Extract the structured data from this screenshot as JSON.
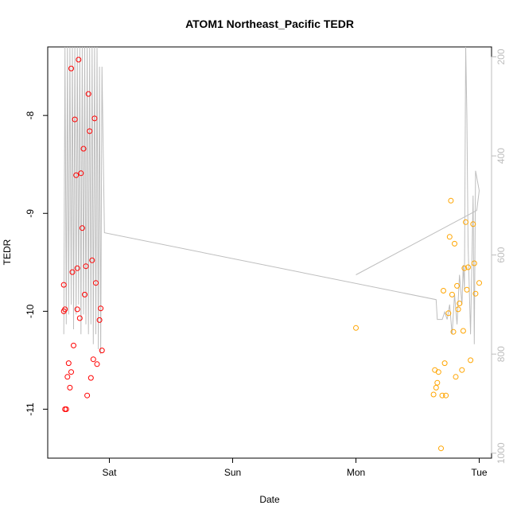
{
  "chart_data": {
    "type": "scatter",
    "title": "ATOM1 Northeast_Pacific TEDR",
    "xlabel": "Date",
    "ylabel": "TEDR",
    "x_ticks": [
      "Sat",
      "Sun",
      "Mon",
      "Tue"
    ],
    "xlim_days": [
      -0.5,
      3.1
    ],
    "ylim": [
      -11.5,
      -7.3
    ],
    "y_ticks": [
      -8,
      -9,
      -10,
      -11
    ],
    "y2_ticks": [
      200,
      400,
      600,
      800,
      1000
    ],
    "y2lim": [
      1010,
      180
    ],
    "grid": false,
    "colors": {
      "series1": "#ff0000",
      "series2": "#ffa500",
      "line": "#bebebe",
      "right_axis": "#bdbdbd"
    },
    "series": [
      {
        "color": "#ff0000",
        "points": [
          {
            "x": -0.37,
            "y": -9.73
          },
          {
            "x": -0.37,
            "y": -10.0
          },
          {
            "x": -0.36,
            "y": -9.98
          },
          {
            "x": -0.36,
            "y": -11.0
          },
          {
            "x": -0.35,
            "y": -11.0
          },
          {
            "x": -0.34,
            "y": -10.67
          },
          {
            "x": -0.33,
            "y": -10.53
          },
          {
            "x": -0.32,
            "y": -10.78
          },
          {
            "x": -0.31,
            "y": -10.62
          },
          {
            "x": -0.31,
            "y": -7.52
          },
          {
            "x": -0.3,
            "y": -9.6
          },
          {
            "x": -0.29,
            "y": -10.35
          },
          {
            "x": -0.28,
            "y": -8.04
          },
          {
            "x": -0.27,
            "y": -8.61
          },
          {
            "x": -0.26,
            "y": -9.56
          },
          {
            "x": -0.26,
            "y": -9.98
          },
          {
            "x": -0.25,
            "y": -7.43
          },
          {
            "x": -0.24,
            "y": -10.07
          },
          {
            "x": -0.23,
            "y": -8.59
          },
          {
            "x": -0.22,
            "y": -9.15
          },
          {
            "x": -0.21,
            "y": -8.34
          },
          {
            "x": -0.2,
            "y": -9.83
          },
          {
            "x": -0.19,
            "y": -9.54
          },
          {
            "x": -0.18,
            "y": -10.86
          },
          {
            "x": -0.17,
            "y": -7.78
          },
          {
            "x": -0.16,
            "y": -8.16
          },
          {
            "x": -0.15,
            "y": -10.68
          },
          {
            "x": -0.14,
            "y": -9.48
          },
          {
            "x": -0.13,
            "y": -10.49
          },
          {
            "x": -0.12,
            "y": -8.03
          },
          {
            "x": -0.11,
            "y": -9.71
          },
          {
            "x": -0.1,
            "y": -10.54
          },
          {
            "x": -0.08,
            "y": -10.09
          },
          {
            "x": -0.07,
            "y": -9.97
          },
          {
            "x": -0.06,
            "y": -10.4
          }
        ]
      },
      {
        "color": "#ffa500",
        "points": [
          {
            "x": 2.0,
            "y": -10.17
          },
          {
            "x": 2.63,
            "y": -10.85
          },
          {
            "x": 2.64,
            "y": -10.6
          },
          {
            "x": 2.65,
            "y": -10.78
          },
          {
            "x": 2.66,
            "y": -10.73
          },
          {
            "x": 2.67,
            "y": -10.62
          },
          {
            "x": 2.69,
            "y": -11.4
          },
          {
            "x": 2.7,
            "y": -10.86
          },
          {
            "x": 2.71,
            "y": -9.79
          },
          {
            "x": 2.72,
            "y": -10.53
          },
          {
            "x": 2.73,
            "y": -10.86
          },
          {
            "x": 2.75,
            "y": -10.02
          },
          {
            "x": 2.76,
            "y": -9.24
          },
          {
            "x": 2.77,
            "y": -8.87
          },
          {
            "x": 2.78,
            "y": -9.83
          },
          {
            "x": 2.79,
            "y": -10.21
          },
          {
            "x": 2.8,
            "y": -9.31
          },
          {
            "x": 2.81,
            "y": -10.67
          },
          {
            "x": 2.82,
            "y": -9.74
          },
          {
            "x": 2.83,
            "y": -9.98
          },
          {
            "x": 2.84,
            "y": -9.92
          },
          {
            "x": 2.86,
            "y": -10.6
          },
          {
            "x": 2.87,
            "y": -10.2
          },
          {
            "x": 2.88,
            "y": -9.56
          },
          {
            "x": 2.89,
            "y": -9.09
          },
          {
            "x": 2.9,
            "y": -9.78
          },
          {
            "x": 2.91,
            "y": -9.55
          },
          {
            "x": 2.93,
            "y": -10.5
          },
          {
            "x": 2.95,
            "y": -9.11
          },
          {
            "x": 2.96,
            "y": -9.51
          },
          {
            "x": 2.97,
            "y": -9.82
          },
          {
            "x": 3.0,
            "y": -9.71
          }
        ]
      }
    ],
    "line": {
      "color": "#bebebe",
      "axis": "right",
      "points": [
        {
          "x": -0.37,
          "y": 760
        },
        {
          "x": -0.36,
          "y": 180
        },
        {
          "x": -0.35,
          "y": 740
        },
        {
          "x": -0.34,
          "y": 180
        },
        {
          "x": -0.33,
          "y": 720
        },
        {
          "x": -0.32,
          "y": 180
        },
        {
          "x": -0.31,
          "y": 700
        },
        {
          "x": -0.3,
          "y": 180
        },
        {
          "x": -0.29,
          "y": 750
        },
        {
          "x": -0.28,
          "y": 180
        },
        {
          "x": -0.27,
          "y": 720
        },
        {
          "x": -0.26,
          "y": 180
        },
        {
          "x": -0.25,
          "y": 700
        },
        {
          "x": -0.24,
          "y": 180
        },
        {
          "x": -0.23,
          "y": 760
        },
        {
          "x": -0.22,
          "y": 180
        },
        {
          "x": -0.21,
          "y": 720
        },
        {
          "x": -0.2,
          "y": 180
        },
        {
          "x": -0.19,
          "y": 740
        },
        {
          "x": -0.18,
          "y": 180
        },
        {
          "x": -0.17,
          "y": 760
        },
        {
          "x": -0.16,
          "y": 180
        },
        {
          "x": -0.15,
          "y": 740
        },
        {
          "x": -0.14,
          "y": 180
        },
        {
          "x": -0.13,
          "y": 780
        },
        {
          "x": -0.12,
          "y": 180
        },
        {
          "x": -0.11,
          "y": 760
        },
        {
          "x": -0.1,
          "y": 180
        },
        {
          "x": -0.09,
          "y": 790
        },
        {
          "x": -0.08,
          "y": 220
        },
        {
          "x": -0.07,
          "y": 800
        },
        {
          "x": -0.06,
          "y": 220
        },
        {
          "x": -0.04,
          "y": 555
        },
        {
          "x": 2.65,
          "y": 690
        },
        {
          "x": 2.66,
          "y": 730
        },
        {
          "x": 2.7,
          "y": 730
        },
        {
          "x": 2.72,
          "y": 715
        },
        {
          "x": 2.74,
          "y": 730
        },
        {
          "x": 2.76,
          "y": 700
        },
        {
          "x": 2.78,
          "y": 760
        },
        {
          "x": 2.8,
          "y": 680
        },
        {
          "x": 2.82,
          "y": 740
        },
        {
          "x": 2.84,
          "y": 640
        },
        {
          "x": 2.86,
          "y": 700
        },
        {
          "x": 2.87,
          "y": 620
        },
        {
          "x": 2.88,
          "y": 670
        },
        {
          "x": 2.89,
          "y": 180
        },
        {
          "x": 2.9,
          "y": 320
        },
        {
          "x": 2.91,
          "y": 580
        },
        {
          "x": 2.93,
          "y": 760
        },
        {
          "x": 2.95,
          "y": 480
        },
        {
          "x": 2.96,
          "y": 780
        },
        {
          "x": 2.97,
          "y": 430
        },
        {
          "x": 3.0,
          "y": 470
        },
        {
          "x": 2.98,
          "y": 510
        },
        {
          "x": 2.0,
          "y": 640
        }
      ]
    }
  }
}
